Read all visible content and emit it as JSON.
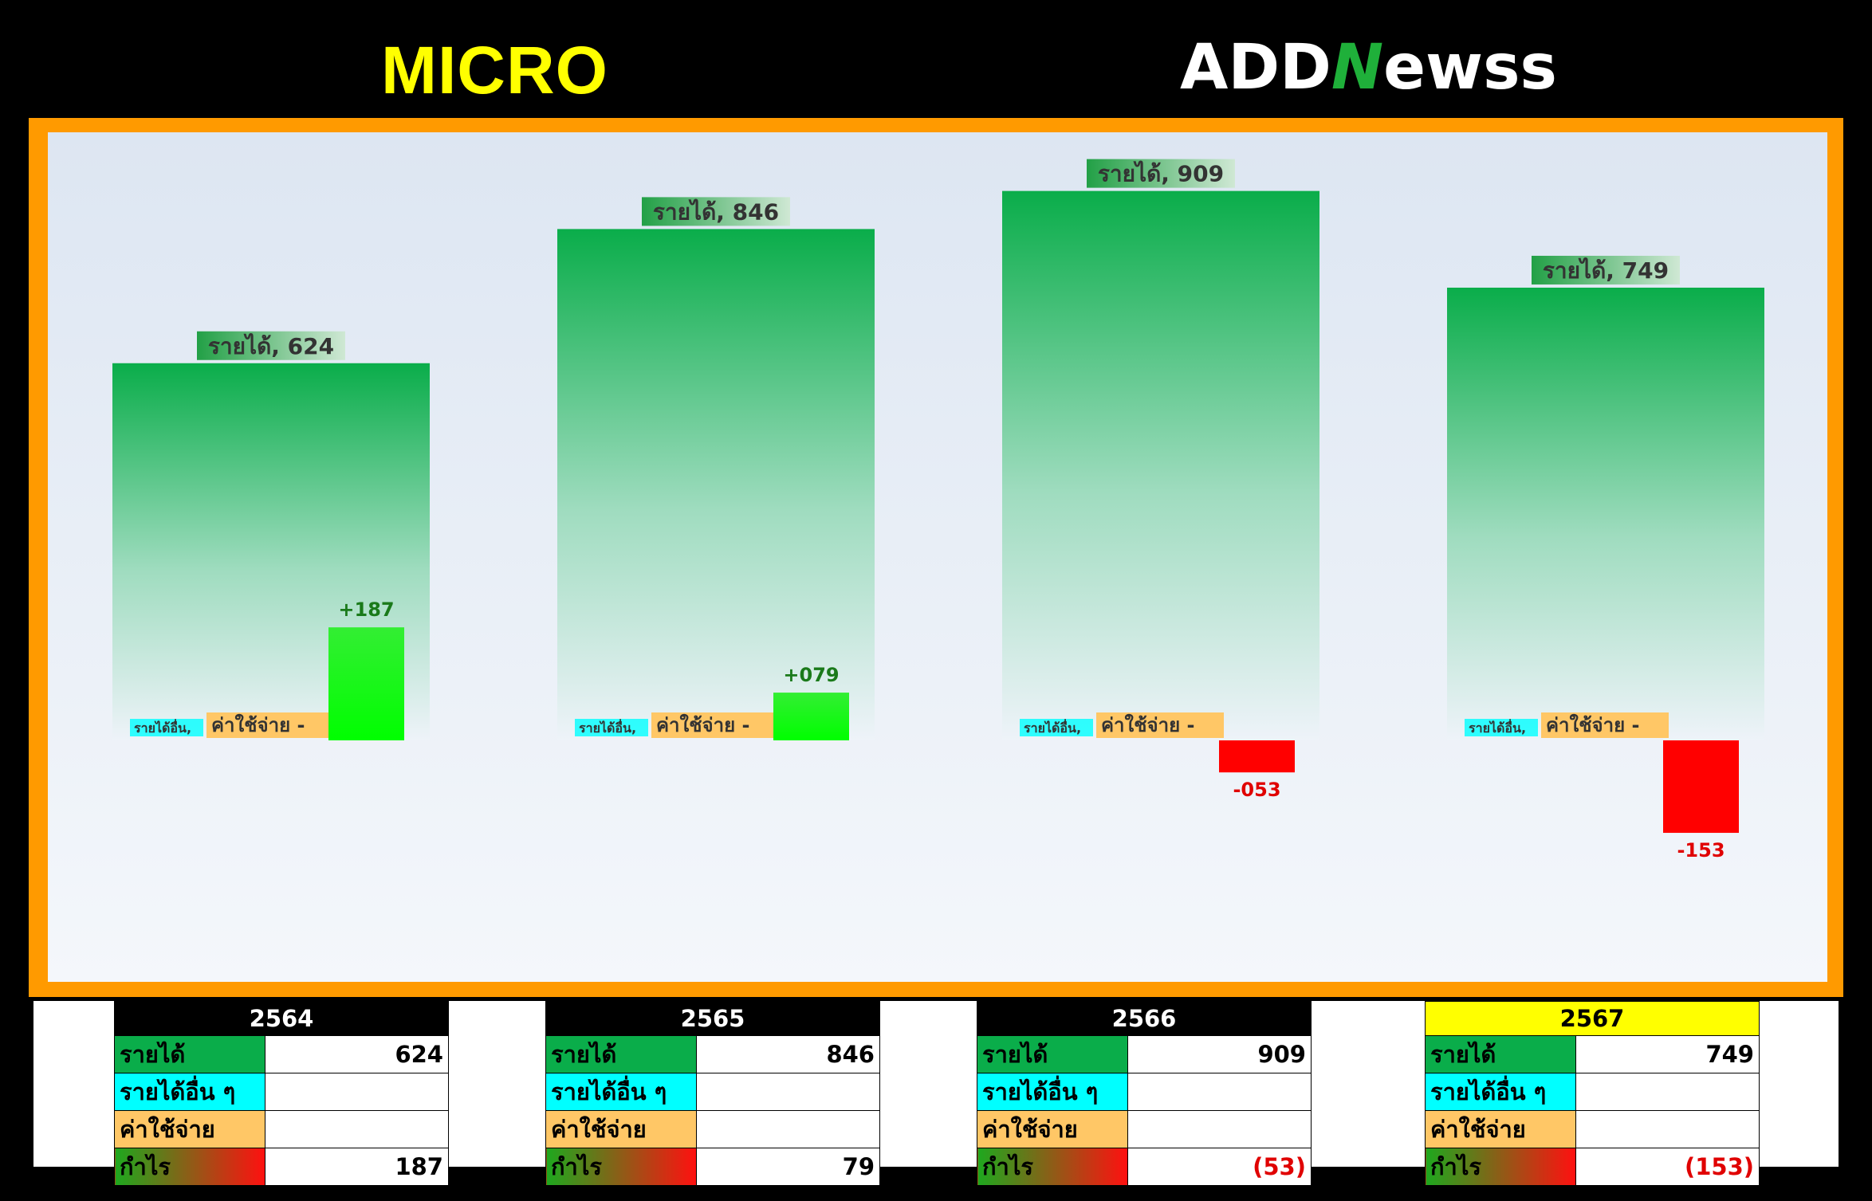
{
  "header": {
    "title": "MICRO",
    "logo_text_a": "ADD",
    "logo_text_b": "N",
    "logo_text_c": "ewss"
  },
  "colors": {
    "revenue": "#0aad4a",
    "other": "#00ffff",
    "expense": "#ffc766",
    "profit_pos": "#10ff10",
    "profit_neg": "#ff0000",
    "frame": "#ff9a00",
    "highlight_year": "#ffff00"
  },
  "chart_data": {
    "type": "bar",
    "categories": [
      "2564",
      "2565",
      "2566",
      "2567"
    ],
    "series": [
      {
        "name": "รายได้",
        "values": [
          624,
          846,
          909,
          749
        ]
      },
      {
        "name": "รายได้อื่น",
        "values": [
          null,
          null,
          null,
          null
        ]
      },
      {
        "name": "ค่าใช้จ่าย",
        "values": [
          null,
          null,
          null,
          null
        ]
      },
      {
        "name": "กำไร",
        "values": [
          187,
          79,
          -53,
          -153
        ]
      }
    ],
    "bar_labels": {
      "revenue": [
        "รายได้, 624",
        "รายได้, 846",
        "รายได้, 909",
        "รายได้, 749"
      ],
      "other": [
        "รายได้อื่น,",
        "รายได้อื่น,",
        "รายได้อื่น,",
        "รายได้อื่น,"
      ],
      "expense": [
        "ค่าใช้จ่าย -",
        "ค่าใช้จ่าย -",
        "ค่าใช้จ่าย -",
        "ค่าใช้จ่าย -"
      ],
      "profit": [
        "+187",
        "+079",
        "-053",
        "-153"
      ]
    },
    "ylim": [
      -300,
      1000
    ],
    "grid": false,
    "legend": "none"
  },
  "tables": [
    {
      "year": "2564",
      "rows": [
        {
          "label": "รายได้",
          "value": "624"
        },
        {
          "label": "รายได้อื่น ๆ",
          "value": ""
        },
        {
          "label": "ค่าใช้จ่าย",
          "value": ""
        },
        {
          "label": "กำไร",
          "value": "187"
        }
      ]
    },
    {
      "year": "2565",
      "rows": [
        {
          "label": "รายได้",
          "value": "846"
        },
        {
          "label": "รายได้อื่น ๆ",
          "value": ""
        },
        {
          "label": "ค่าใช้จ่าย",
          "value": ""
        },
        {
          "label": "กำไร",
          "value": "79"
        }
      ]
    },
    {
      "year": "2566",
      "rows": [
        {
          "label": "รายได้",
          "value": "909"
        },
        {
          "label": "รายได้อื่น ๆ",
          "value": ""
        },
        {
          "label": "ค่าใช้จ่าย",
          "value": ""
        },
        {
          "label": "กำไร",
          "value": "(53)"
        }
      ]
    },
    {
      "year": "2567",
      "rows": [
        {
          "label": "รายได้",
          "value": "749"
        },
        {
          "label": "รายได้อื่น ๆ",
          "value": ""
        },
        {
          "label": "ค่าใช้จ่าย",
          "value": ""
        },
        {
          "label": "กำไร",
          "value": "(153)"
        }
      ]
    }
  ]
}
